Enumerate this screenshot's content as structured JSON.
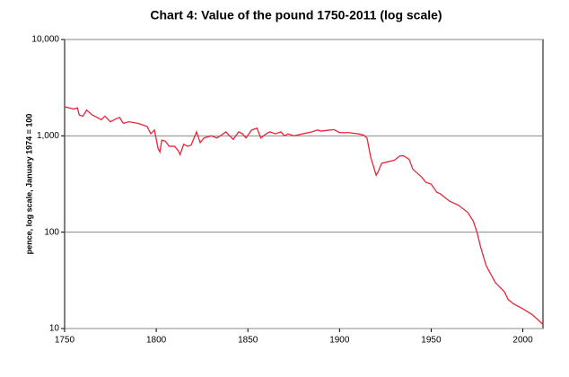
{
  "chart_data": {
    "type": "line",
    "title": "Chart 4: Value of the pound 1750-2011 (log scale)",
    "y_label": "pence, log scale, January 1974 = 100",
    "log_scale": true,
    "grid": true,
    "xlim": [
      1750,
      2011
    ],
    "xticks": [
      1750,
      1800,
      1850,
      1900,
      1950,
      2000
    ],
    "ylim": [
      10,
      10000
    ],
    "yticks": [
      10,
      100,
      {
        "value": 1000,
        "label": "1,000"
      },
      {
        "value": 10000,
        "label": "10,000"
      }
    ],
    "x": [
      1750,
      1755,
      1757,
      1758,
      1760,
      1762,
      1765,
      1770,
      1772,
      1775,
      1778,
      1780,
      1782,
      1785,
      1790,
      1795,
      1797,
      1799,
      1801,
      1802,
      1803,
      1805,
      1807,
      1810,
      1812,
      1813,
      1815,
      1817,
      1819,
      1822,
      1824,
      1826,
      1830,
      1833,
      1835,
      1838,
      1840,
      1842,
      1845,
      1847,
      1849,
      1852,
      1855,
      1857,
      1860,
      1862,
      1865,
      1868,
      1870,
      1872,
      1875,
      1880,
      1885,
      1888,
      1890,
      1895,
      1897,
      1900,
      1905,
      1910,
      1913,
      1915,
      1917,
      1920,
      1921,
      1923,
      1925,
      1930,
      1933,
      1935,
      1938,
      1940,
      1945,
      1947,
      1950,
      1953,
      1955,
      1960,
      1965,
      1970,
      1973,
      1975,
      1977,
      1980,
      1985,
      1990,
      1992,
      1995,
      2000,
      2005,
      2010,
      2011
    ],
    "series": [
      {
        "name": "Value of the pound",
        "color": "#e8263a",
        "values": [
          2000,
          1900,
          1950,
          1640,
          1600,
          1850,
          1650,
          1470,
          1600,
          1400,
          1500,
          1550,
          1350,
          1400,
          1350,
          1250,
          1050,
          1150,
          740,
          680,
          900,
          880,
          780,
          780,
          700,
          640,
          820,
          780,
          800,
          1100,
          850,
          950,
          1000,
          950,
          1000,
          1100,
          1000,
          920,
          1100,
          1050,
          950,
          1150,
          1200,
          950,
          1050,
          1100,
          1050,
          1100,
          1000,
          1050,
          1000,
          1050,
          1100,
          1150,
          1120,
          1150,
          1160,
          1080,
          1080,
          1050,
          1020,
          950,
          600,
          390,
          420,
          520,
          530,
          560,
          620,
          620,
          570,
          450,
          370,
          330,
          315,
          260,
          250,
          210,
          190,
          160,
          130,
          100,
          70,
          45,
          30,
          24,
          20,
          18,
          16,
          14,
          11.5,
          11
        ]
      }
    ]
  }
}
